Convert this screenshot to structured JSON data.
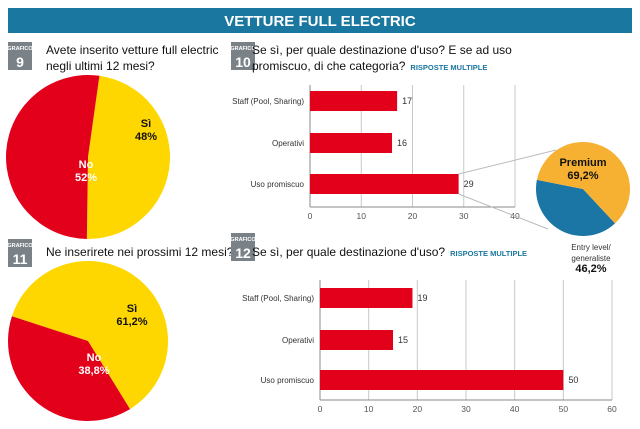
{
  "header": {
    "title": "VETTURE FULL ELECTRIC"
  },
  "colors": {
    "header": "#1a77a0",
    "bar": "#e2001a",
    "yes": "#ffd700",
    "no": "#e2001a",
    "premium": "#f6b132",
    "entry": "#1b75a5",
    "badge": "#7a8288"
  },
  "chart_data": [
    {
      "id": "grafico9",
      "type": "pie",
      "badge_label": "GRAFICO",
      "badge_number": "9",
      "title_lines": [
        "Avete inserito vetture full electric",
        "negli ultimi 12 mesi?"
      ],
      "slices": [
        {
          "label": "Sì",
          "value": 48,
          "value_label": "48%",
          "color": "#ffd700"
        },
        {
          "label": "No",
          "value": 52,
          "value_label": "52%",
          "color": "#e2001a"
        }
      ]
    },
    {
      "id": "grafico10",
      "type": "bar",
      "orientation": "horizontal",
      "badge_label": "GRAFICO",
      "badge_number": "10",
      "title_lines": [
        "Se sì, per quale destinazione d'uso? E se ad uso",
        "promiscuo, di che categoria?"
      ],
      "subtitle": "RISPOSTE MULTIPLE",
      "categories": [
        "Staff (Pool, Sharing)",
        "Operativi",
        "Uso promiscuo"
      ],
      "values": [
        17,
        16,
        29
      ],
      "xlim": [
        0,
        40
      ],
      "ticks": [
        0,
        10,
        20,
        30,
        40
      ],
      "grid": true,
      "breakdown": {
        "type": "pie",
        "of": "Uso promiscuo",
        "slices": [
          {
            "label": "Premium",
            "value": 69.2,
            "value_label": "69,2%",
            "color": "#f6b132"
          },
          {
            "label_lines": [
              "Entry level/",
              "generaliste"
            ],
            "value": 46.2,
            "value_label": "46,2%",
            "color": "#1b75a5"
          }
        ]
      }
    },
    {
      "id": "grafico11",
      "type": "pie",
      "badge_label": "GRAFICO",
      "badge_number": "11",
      "title_lines": [
        "Ne inserirete nei prossimi 12 mesi?"
      ],
      "slices": [
        {
          "label": "Sì",
          "value": 61.2,
          "value_label": "61,2%",
          "color": "#ffd700"
        },
        {
          "label": "No",
          "value": 38.8,
          "value_label": "38,8%",
          "color": "#e2001a"
        }
      ]
    },
    {
      "id": "grafico12",
      "type": "bar",
      "orientation": "horizontal",
      "badge_label": "GRAFICO",
      "badge_number": "12",
      "title_lines": [
        "Se sì, per quale destinazione d'uso?"
      ],
      "subtitle": "RISPOSTE MULTIPLE",
      "categories": [
        "Staff (Pool, Sharing)",
        "Operativi",
        "Uso promiscuo"
      ],
      "values": [
        19,
        15,
        50
      ],
      "xlim": [
        0,
        60
      ],
      "ticks": [
        0,
        10,
        20,
        30,
        40,
        50,
        60
      ],
      "grid": true
    }
  ]
}
